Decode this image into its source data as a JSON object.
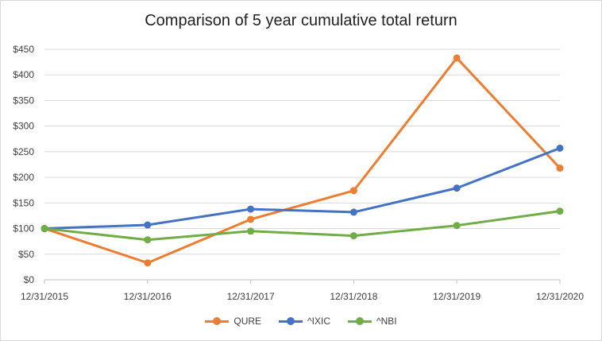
{
  "chart_data": {
    "type": "line",
    "title": "Comparison of 5 year cumulative total return",
    "categories": [
      "12/31/2015",
      "12/31/2016",
      "12/31/2017",
      "12/31/2018",
      "12/31/2019",
      "12/31/2020"
    ],
    "y_ticks": [
      "$0",
      "$50",
      "$100",
      "$150",
      "$200",
      "$250",
      "$300",
      "$350",
      "$400",
      "$450"
    ],
    "ylim": [
      0,
      450
    ],
    "grid": true,
    "legend_position": "bottom",
    "series": [
      {
        "name": "QURE",
        "color": "#ED7D31",
        "values": [
          100,
          33,
          118,
          174,
          433,
          218
        ]
      },
      {
        "name": "^IXIC",
        "color": "#4472C4",
        "values": [
          100,
          107,
          138,
          132,
          179,
          257
        ]
      },
      {
        "name": "^NBI",
        "color": "#70AD47",
        "values": [
          100,
          78,
          95,
          86,
          106,
          134
        ]
      }
    ]
  }
}
